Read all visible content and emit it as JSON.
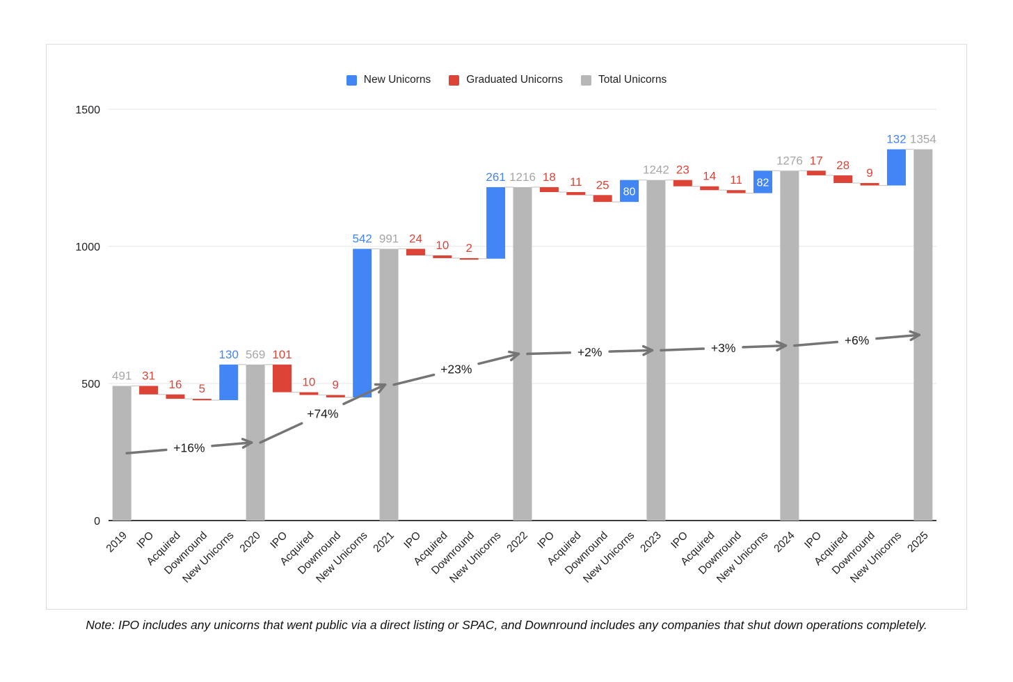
{
  "note": "Note: IPO includes any unicorns that went public via a direct listing or SPAC, and Downround includes any companies that shut down operations completely.",
  "legend": {
    "items": [
      {
        "label": "New Unicorns",
        "color": "#4285F4"
      },
      {
        "label": "Graduated Unicorns",
        "color": "#DB4437"
      },
      {
        "label": "Total Unicorns",
        "color": "#B7B7B7"
      }
    ]
  },
  "colors": {
    "increase": "#4285F4",
    "decrease": "#DB4437",
    "total": "#B7B7B7",
    "total_label": "#A6A6A6",
    "arrow": "#757575",
    "grid": "#E6E6E6",
    "axis": "#3C3C3C",
    "connector": "#CCCCCC",
    "inside_label": "#FFFFFF",
    "text": "#202124",
    "arrow_label": "#1A1A1A"
  },
  "chart_data": {
    "type": "waterfall",
    "title": "",
    "xlabel": "",
    "ylabel": "",
    "y_ticks": [
      0,
      500,
      1000,
      1500
    ],
    "y_max": 1500,
    "grid": true,
    "legend_position": "top-center",
    "bars": [
      {
        "label": "2019",
        "value": 491,
        "type": "total"
      },
      {
        "label": "IPO",
        "value": 31,
        "type": "decrease"
      },
      {
        "label": "Acquired",
        "value": 16,
        "type": "decrease"
      },
      {
        "label": "Downround",
        "value": 5,
        "type": "decrease"
      },
      {
        "label": "New Unicorns",
        "value": 130,
        "type": "increase"
      },
      {
        "label": "2020",
        "value": 569,
        "type": "total"
      },
      {
        "label": "IPO",
        "value": 101,
        "type": "decrease"
      },
      {
        "label": "Acquired",
        "value": 10,
        "type": "decrease"
      },
      {
        "label": "Downround",
        "value": 9,
        "type": "decrease"
      },
      {
        "label": "New Unicorns",
        "value": 542,
        "type": "increase"
      },
      {
        "label": "2021",
        "value": 991,
        "type": "total"
      },
      {
        "label": "IPO",
        "value": 24,
        "type": "decrease"
      },
      {
        "label": "Acquired",
        "value": 10,
        "type": "decrease"
      },
      {
        "label": "Downround",
        "value": 2,
        "type": "decrease"
      },
      {
        "label": "New Unicorns",
        "value": 261,
        "type": "increase"
      },
      {
        "label": "2022",
        "value": 1216,
        "type": "total"
      },
      {
        "label": "IPO",
        "value": 18,
        "type": "decrease"
      },
      {
        "label": "Acquired",
        "value": 11,
        "type": "decrease"
      },
      {
        "label": "Downround",
        "value": 25,
        "type": "decrease"
      },
      {
        "label": "New Unicorns",
        "value": 80,
        "type": "increase",
        "label_inside": true
      },
      {
        "label": "2023",
        "value": 1242,
        "type": "total"
      },
      {
        "label": "IPO",
        "value": 23,
        "type": "decrease"
      },
      {
        "label": "Acquired",
        "value": 14,
        "type": "decrease"
      },
      {
        "label": "Downround",
        "value": 11,
        "type": "decrease"
      },
      {
        "label": "New Unicorns",
        "value": 82,
        "type": "increase",
        "label_inside": true
      },
      {
        "label": "2024",
        "value": 1276,
        "type": "total"
      },
      {
        "label": "IPO",
        "value": 17,
        "type": "decrease"
      },
      {
        "label": "Acquired",
        "value": 28,
        "type": "decrease"
      },
      {
        "label": "Downround",
        "value": 9,
        "type": "decrease"
      },
      {
        "label": "New Unicorns",
        "value": 132,
        "type": "increase"
      },
      {
        "label": "2025",
        "value": 1354,
        "type": "total"
      }
    ],
    "growth_arrows": [
      {
        "label": "+16%",
        "from_index": 0,
        "to_index": 5
      },
      {
        "label": "+74%",
        "from_index": 5,
        "to_index": 10
      },
      {
        "label": "+23%",
        "from_index": 10,
        "to_index": 15
      },
      {
        "label": "+2%",
        "from_index": 15,
        "to_index": 20
      },
      {
        "label": "+3%",
        "from_index": 20,
        "to_index": 25
      },
      {
        "label": "+6%",
        "from_index": 25,
        "to_index": 30
      }
    ]
  }
}
